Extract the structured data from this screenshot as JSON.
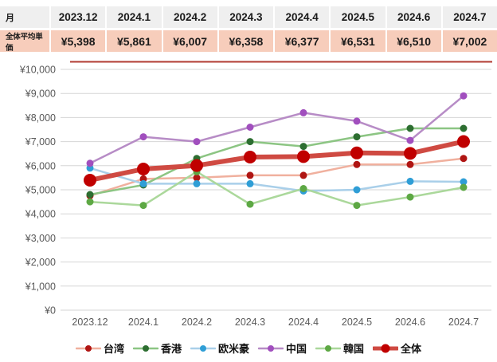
{
  "table": {
    "month_header_label": "月",
    "row_label": "全体平均単価",
    "months": [
      "2023.12",
      "2024.1",
      "2024.2",
      "2024.3",
      "2024.4",
      "2024.5",
      "2024.6",
      "2024.7"
    ],
    "values": [
      "¥5,398",
      "¥5,861",
      "¥6,007",
      "¥6,358",
      "¥6,377",
      "¥6,531",
      "¥6,510",
      "¥7,002"
    ]
  },
  "chart_data": {
    "type": "line",
    "x": [
      "2023.12",
      "2024.1",
      "2024.2",
      "2024.3",
      "2024.4",
      "2024.5",
      "2024.6",
      "2024.7"
    ],
    "ylim": [
      0,
      10000
    ],
    "grid": true,
    "legend_position": "bottom",
    "ytick_labels": [
      "¥0",
      "¥1,000",
      "¥2,000",
      "¥3,000",
      "¥4,000",
      "¥5,000",
      "¥6,000",
      "¥7,000",
      "¥8,000",
      "¥9,000",
      "¥10,000"
    ],
    "series": [
      {
        "id": "taiwan",
        "name": "台湾",
        "values": [
          4750,
          5450,
          5500,
          5600,
          5600,
          6050,
          6050,
          6300
        ],
        "line_color": "#f0b09e",
        "marker_color": "#b01513",
        "thick": false
      },
      {
        "id": "hongkong",
        "name": "香港",
        "values": [
          4800,
          5200,
          6300,
          7000,
          6800,
          7200,
          7550,
          7550
        ],
        "line_color": "#8cc583",
        "marker_color": "#2d6e31",
        "thick": false
      },
      {
        "id": "western",
        "name": "欧米豪",
        "values": [
          5900,
          5250,
          5250,
          5250,
          4950,
          5000,
          5350,
          5330
        ],
        "line_color": "#a9cfe9",
        "marker_color": "#2f9ed6",
        "thick": false
      },
      {
        "id": "china",
        "name": "中国",
        "values": [
          6100,
          7200,
          7000,
          7600,
          8200,
          7850,
          7050,
          8900
        ],
        "line_color": "#b78cc6",
        "marker_color": "#a14fbe",
        "thick": false
      },
      {
        "id": "korea",
        "name": "韓国",
        "values": [
          4500,
          4350,
          5750,
          4400,
          5050,
          4350,
          4700,
          5100
        ],
        "line_color": "#abd89b",
        "marker_color": "#5da844",
        "thick": false
      },
      {
        "id": "overall",
        "name": "全体",
        "values": [
          5398,
          5861,
          6007,
          6358,
          6377,
          6531,
          6510,
          7002
        ],
        "line_color": "#cf4a42",
        "marker_color": "#c00000",
        "thick": true
      }
    ]
  },
  "colors": {
    "header_row_bg": "#efefef",
    "value_row_bg": "#f7cdbb",
    "gridline": "#d6d6d6",
    "top_border_line": "#b23b32",
    "axis_text": "#595959"
  }
}
